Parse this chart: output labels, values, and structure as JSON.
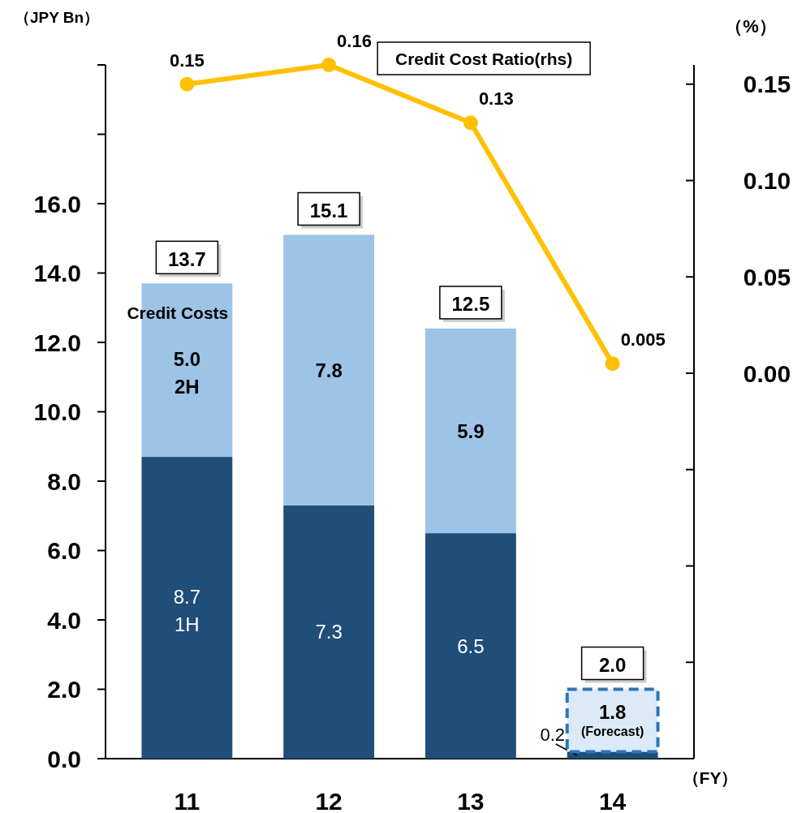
{
  "chart_data": {
    "type": "bar",
    "stacked": true,
    "ylabel": "（JPY Bn）",
    "y2label": "（%）",
    "xlabel": "（FY）",
    "categories": [
      "11",
      "12",
      "13",
      "14"
    ],
    "series": [
      {
        "name": "1H",
        "color": "#1f4e79",
        "values": [
          8.7,
          7.3,
          6.5,
          0.2
        ],
        "value_labels": [
          "8.7",
          "7.3",
          "6.5",
          "0.2"
        ]
      },
      {
        "name": "2H",
        "color": "#9dc3e6",
        "colors": [
          "#9dc3e6",
          "#9dc3e6",
          "#9dc3e6",
          "#dce9f6"
        ],
        "values": [
          5.0,
          7.8,
          5.9,
          1.8
        ],
        "value_labels": [
          "5.0",
          "7.8",
          "5.9",
          "1.8"
        ]
      },
      {
        "name": "Credit Cost Ratio(rhs)",
        "type": "line",
        "axis": "y2",
        "color": "#ffc000",
        "values": [
          0.15,
          0.16,
          0.13,
          0.005
        ],
        "data_labels": true,
        "marker": "circle"
      }
    ],
    "totals": [
      "13.7",
      "15.1",
      "12.5",
      "2.0"
    ],
    "ylim": [
      0,
      20
    ],
    "yticks": [
      {
        "value": 0,
        "label": "0.0"
      },
      {
        "value": 2,
        "label": "2.0"
      },
      {
        "value": 4,
        "label": "4.0"
      },
      {
        "value": 6,
        "label": "6.0"
      },
      {
        "value": 8,
        "label": "8.0"
      },
      {
        "value": 10,
        "label": "10.0"
      },
      {
        "value": 12,
        "label": "12.0"
      },
      {
        "value": 14,
        "label": "14.0"
      },
      {
        "value": 16,
        "label": "16.0"
      },
      {
        "value": 18,
        "label": null
      },
      {
        "value": 20,
        "label": null
      }
    ],
    "y2lim": [
      -0.2,
      0.16
    ],
    "y2ticks": [
      {
        "value": -0.15,
        "label": null
      },
      {
        "value": -0.1,
        "label": null
      },
      {
        "value": -0.05,
        "label": null
      },
      {
        "value": 0,
        "label": "0.00"
      },
      {
        "value": 0.05,
        "label": "0.05"
      },
      {
        "value": 0.1,
        "label": "0.10"
      },
      {
        "value": 0.15,
        "label": "0.15"
      }
    ],
    "annotations": [
      "Credit Costs",
      "(Forecast)"
    ],
    "legend": false
  }
}
